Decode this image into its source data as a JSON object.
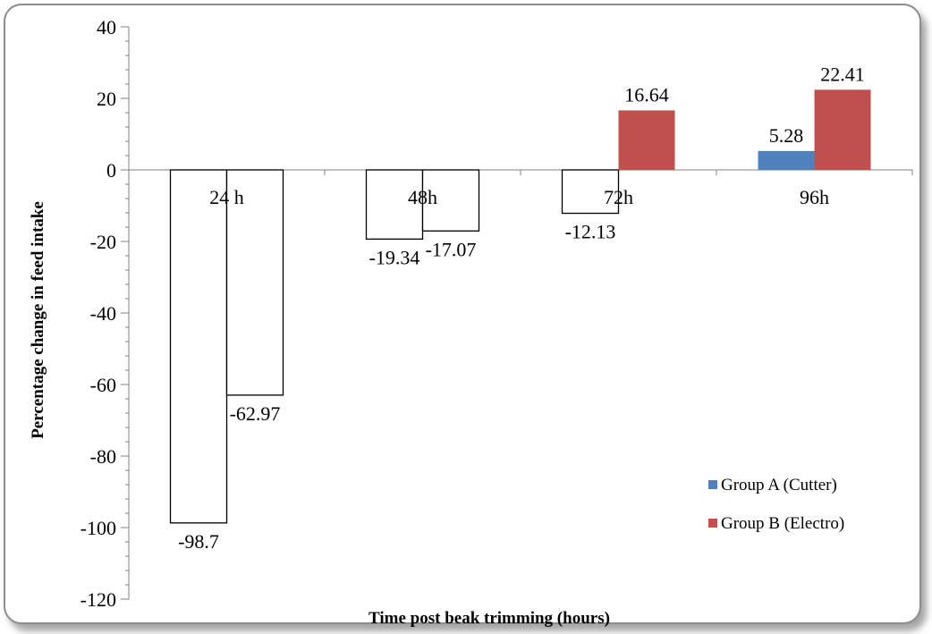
{
  "chart_data": {
    "type": "bar",
    "categories": [
      "24 h",
      "48h",
      "72h",
      "96h"
    ],
    "series": [
      {
        "name": "Group A (Cutter)",
        "values": [
          -98.7,
          -19.34,
          -12.13,
          5.28
        ],
        "labels": [
          "-98.7",
          "-19.34",
          "-12.13",
          "5.28"
        ],
        "color": "#4f81bd"
      },
      {
        "name": "Group B (Electro)",
        "values": [
          -62.97,
          -17.07,
          16.64,
          22.41
        ],
        "labels": [
          "-62.97",
          "-17.07",
          "16.64",
          "22.41"
        ],
        "color": "#c0504d"
      }
    ],
    "negative_fill": "#ffffff",
    "xlabel": "Time post beak trimming (hours)",
    "ylabel": "Percentage change in feed intake",
    "ylim": [
      -120,
      40
    ],
    "yticks": [
      40,
      20,
      0,
      -20,
      -40,
      -60,
      -80,
      -100,
      -120
    ],
    "minor_tick_step": 4,
    "grid": false,
    "legend_position": "bottom-right"
  }
}
